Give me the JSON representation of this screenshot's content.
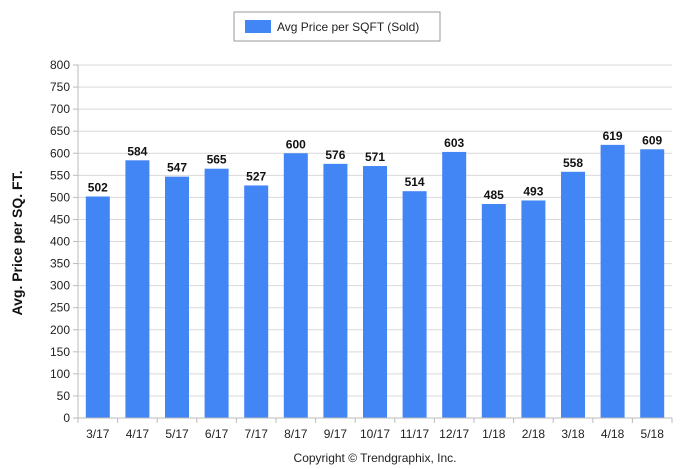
{
  "chart_data": {
    "type": "bar",
    "categories": [
      "3/17",
      "4/17",
      "5/17",
      "6/17",
      "7/17",
      "8/17",
      "9/17",
      "10/17",
      "11/17",
      "12/17",
      "1/18",
      "2/18",
      "3/18",
      "4/18",
      "5/18"
    ],
    "series": [
      {
        "name": "Avg Price per SQFT (Sold)",
        "values": [
          502,
          584,
          547,
          565,
          527,
          600,
          576,
          571,
          514,
          603,
          485,
          493,
          558,
          619,
          609
        ]
      }
    ],
    "ylabel": "Avg. Price per SQ. FT.",
    "xlabel": "",
    "ylim": [
      0,
      800
    ],
    "yticks": [
      0,
      50,
      100,
      150,
      200,
      250,
      300,
      350,
      400,
      450,
      500,
      550,
      600,
      650,
      700,
      750,
      800
    ],
    "grid": true,
    "legend_position": "top-center",
    "data_labels": true,
    "colors": {
      "bar": "#4285f4",
      "grid": "#d9d9d9",
      "axis": "#bbbbbb"
    }
  },
  "footer": {
    "copyright": "Copyright © Trendgraphix, Inc."
  }
}
